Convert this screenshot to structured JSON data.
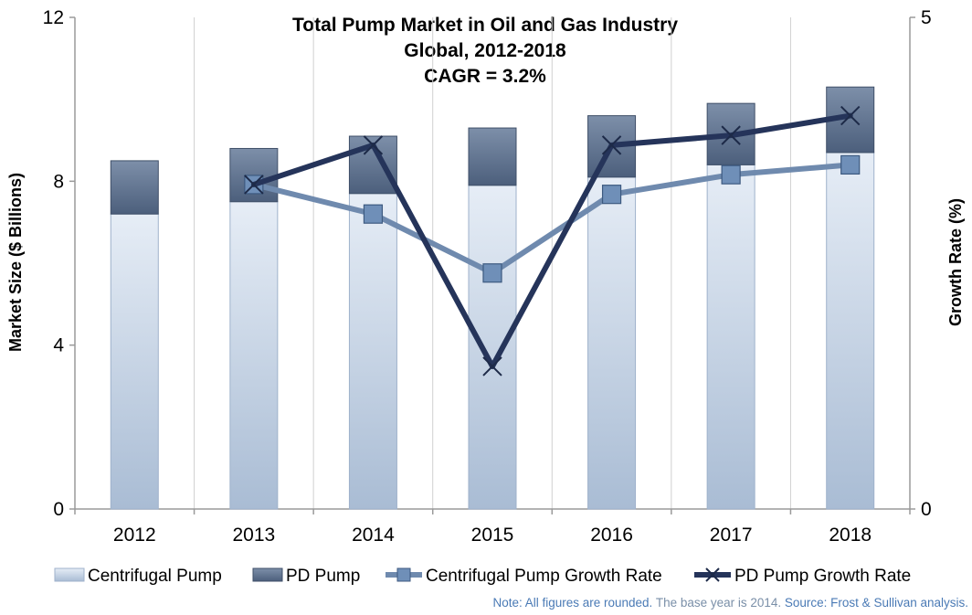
{
  "chart_data": {
    "type": "bar",
    "title_lines": [
      "Total Pump Market in Oil and Gas Industry",
      "Global, 2012-2018",
      "CAGR = 3.2%"
    ],
    "categories": [
      "2012",
      "2013",
      "2014",
      "2015",
      "2016",
      "2017",
      "2018"
    ],
    "stacked": true,
    "series": [
      {
        "name": "Centrifugal Pump",
        "values": [
          7.2,
          7.5,
          7.7,
          7.9,
          8.1,
          8.4,
          8.7
        ],
        "color": "#c5d3e6"
      },
      {
        "name": "PD Pump",
        "values": [
          1.3,
          1.3,
          1.4,
          1.4,
          1.5,
          1.5,
          1.6
        ],
        "color": "#5f7390"
      }
    ],
    "line_series": [
      {
        "name": "Centrifugal Pump Growth Rate",
        "axis": "right",
        "values": [
          null,
          3.3,
          3.0,
          2.4,
          3.2,
          3.4,
          3.5
        ],
        "color": "#6f8aae",
        "marker": "square"
      },
      {
        "name": "PD Pump Growth Rate",
        "axis": "right",
        "values": [
          null,
          3.3,
          3.7,
          1.45,
          3.7,
          3.8,
          4.0
        ],
        "color": "#25345a",
        "marker": "x"
      }
    ],
    "ylabel": "Market Size ($ Billions)",
    "ylim": [
      0,
      12
    ],
    "yticks": [
      "0",
      "4",
      "8",
      "12"
    ],
    "y2label": "Growth Rate (%)",
    "y2lim": [
      0,
      5
    ],
    "y2ticks": [
      "0",
      "5"
    ],
    "legend_position": "bottom",
    "note": {
      "part1": "Note: All figures are rounded.",
      "part2": " The base year is 2014.",
      "part3": " Source: Frost & Sullivan analysis."
    }
  }
}
